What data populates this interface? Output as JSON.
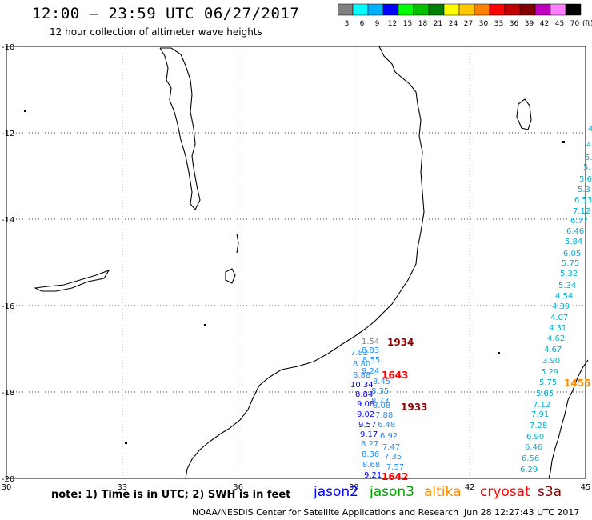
{
  "header": {
    "title": "12:00 – 23:59 UTC 06/27/2017",
    "subtitle": "12 hour collection of altimeter wave heights"
  },
  "legend": {
    "unit": "(ft)",
    "bins": [
      {
        "label": "3",
        "color": "#808080"
      },
      {
        "label": "6",
        "color": "#00ffff"
      },
      {
        "label": "9",
        "color": "#00b0ff"
      },
      {
        "label": "12",
        "color": "#0000ff"
      },
      {
        "label": "15",
        "color": "#00ff00"
      },
      {
        "label": "18",
        "color": "#00c000"
      },
      {
        "label": "21",
        "color": "#008000"
      },
      {
        "label": "24",
        "color": "#ffff00"
      },
      {
        "label": "27",
        "color": "#ffc800"
      },
      {
        "label": "30",
        "color": "#ff8000"
      },
      {
        "label": "33",
        "color": "#ff0000"
      },
      {
        "label": "36",
        "color": "#c00000"
      },
      {
        "label": "39",
        "color": "#800000"
      },
      {
        "label": "42",
        "color": "#c000c0"
      },
      {
        "label": "45",
        "color": "#ff80ff"
      },
      {
        "label": "70",
        "color": "#000000"
      }
    ]
  },
  "map": {
    "lon_ticks": [
      "30",
      "33",
      "36",
      "39",
      "42",
      "45"
    ],
    "lat_ticks": [
      "-10",
      "-12",
      "-14",
      "-16",
      "-18",
      "-20"
    ],
    "lon_range": [
      30,
      45
    ],
    "lat_range": [
      -10,
      -20
    ],
    "pass_times": [
      {
        "label": "1934",
        "color": "#8b0000"
      },
      {
        "label": "1643",
        "color": "#ff0000"
      },
      {
        "label": "1933",
        "color": "#8b0000"
      },
      {
        "label": "1642",
        "color": "#ff0000"
      },
      {
        "label": "1455",
        "color": "#ff8c00"
      }
    ],
    "swh_west": [
      {
        "v": "1.54",
        "color": "#808080"
      },
      {
        "v": "7.82",
        "color": "#1e90ff"
      },
      {
        "v": "8.83",
        "color": "#1e90ff"
      },
      {
        "v": "8.55",
        "color": "#1e90ff"
      },
      {
        "v": "8.80",
        "color": "#1e90ff"
      },
      {
        "v": "9.24",
        "color": "#1e90ff"
      },
      {
        "v": "8.88",
        "color": "#1e90ff"
      },
      {
        "v": "10.34",
        "color": "#0000ff"
      },
      {
        "v": "8.45",
        "color": "#1e90ff"
      },
      {
        "v": "8.84",
        "color": "#0000ff"
      },
      {
        "v": "8.35",
        "color": "#1e90ff"
      },
      {
        "v": "9.08",
        "color": "#0000ff"
      },
      {
        "v": "8.73",
        "color": "#1e90ff"
      },
      {
        "v": "8.08",
        "color": "#1e90ff"
      },
      {
        "v": "9.02",
        "color": "#0000ff"
      },
      {
        "v": "7.88",
        "color": "#1e90ff"
      },
      {
        "v": "9.57",
        "color": "#0000ff"
      },
      {
        "v": "6.48",
        "color": "#1e90ff"
      },
      {
        "v": "9.17",
        "color": "#0000ff"
      },
      {
        "v": "6.92",
        "color": "#1e90ff"
      },
      {
        "v": "8.27",
        "color": "#1e90ff"
      },
      {
        "v": "7.47",
        "color": "#1e90ff"
      },
      {
        "v": "8.36",
        "color": "#1e90ff"
      },
      {
        "v": "7.35",
        "color": "#1e90ff"
      },
      {
        "v": "8.68",
        "color": "#1e90ff"
      },
      {
        "v": "7.57",
        "color": "#1e90ff"
      },
      {
        "v": "9.21",
        "color": "#0000ff"
      }
    ],
    "swh_east": [
      {
        "v": "4.",
        "color": "#00b0d0"
      },
      {
        "v": "4.",
        "color": "#00b0d0"
      },
      {
        "v": "5.",
        "color": "#00b0d0"
      },
      {
        "v": "5.",
        "color": "#00b0d0"
      },
      {
        "v": "5.6",
        "color": "#00b0d0"
      },
      {
        "v": "5.3",
        "color": "#00b0d0"
      },
      {
        "v": "6.53",
        "color": "#00b0d0"
      },
      {
        "v": "7.12",
        "color": "#00b0d0"
      },
      {
        "v": "6.77",
        "color": "#00b0d0"
      },
      {
        "v": "6.46",
        "color": "#00b0d0"
      },
      {
        "v": "5.84",
        "color": "#00b0d0"
      },
      {
        "v": "6.05",
        "color": "#00b0d0"
      },
      {
        "v": "5.75",
        "color": "#00b0d0"
      },
      {
        "v": "5.32",
        "color": "#00b0d0"
      },
      {
        "v": "5.34",
        "color": "#00b0d0"
      },
      {
        "v": "4.54",
        "color": "#00b0d0"
      },
      {
        "v": "4.39",
        "color": "#00b0d0"
      },
      {
        "v": "4.07",
        "color": "#00b0d0"
      },
      {
        "v": "4.31",
        "color": "#00b0d0"
      },
      {
        "v": "4.62",
        "color": "#00b0d0"
      },
      {
        "v": "4.67",
        "color": "#00b0d0"
      },
      {
        "v": "3.90",
        "color": "#00b0d0"
      },
      {
        "v": "5.29",
        "color": "#00b0d0"
      },
      {
        "v": "5.75",
        "color": "#00b0d0"
      },
      {
        "v": "5.65",
        "color": "#00b0d0"
      },
      {
        "v": "7.12",
        "color": "#00b0d0"
      },
      {
        "v": "7.91",
        "color": "#00b0d0"
      },
      {
        "v": "7.28",
        "color": "#00b0d0"
      },
      {
        "v": "6.90",
        "color": "#00b0d0"
      },
      {
        "v": "6.46",
        "color": "#00b0d0"
      },
      {
        "v": "6.56",
        "color": "#00b0d0"
      },
      {
        "v": "6.29",
        "color": "#00b0d0"
      }
    ]
  },
  "footer": {
    "note": "note: 1) Time is in UTC; 2) SWH is in feet",
    "satellites": [
      {
        "name": "jason2",
        "color": "#0000ff"
      },
      {
        "name": "jason3",
        "color": "#00a000"
      },
      {
        "name": "altika",
        "color": "#ff8c00"
      },
      {
        "name": "cryosat",
        "color": "#ff0000"
      },
      {
        "name": "s3a",
        "color": "#8b0000"
      }
    ],
    "credit": "NOAA/NESDIS Center for Satellite Applications and Research",
    "timestamp": "Jun 28 12:27:43 UTC 2017"
  }
}
